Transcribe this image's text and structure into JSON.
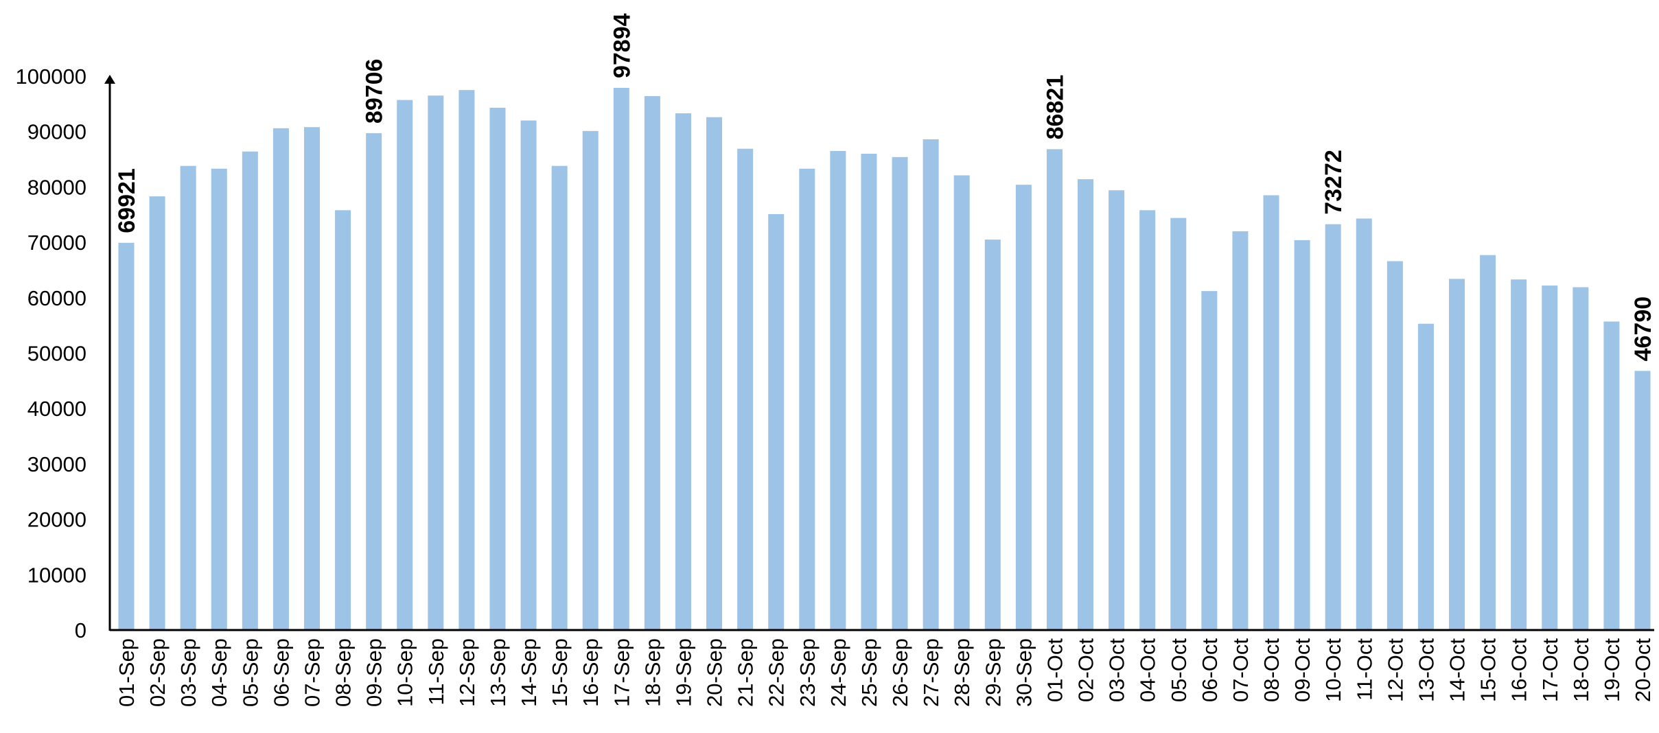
{
  "chart_data": {
    "type": "bar",
    "title": "",
    "xlabel": "",
    "ylabel": "",
    "ylim": [
      0,
      100000
    ],
    "yticks": [
      0,
      10000,
      20000,
      30000,
      40000,
      50000,
      60000,
      70000,
      80000,
      90000,
      100000
    ],
    "ytick_labels": [
      "0",
      "10000",
      "20000",
      "30000",
      "40000",
      "50000",
      "60000",
      "70000",
      "80000",
      "90000",
      "100000"
    ],
    "grid": false,
    "legend": "none",
    "bar_color": "#9dc3e6",
    "axis_color": "#000000",
    "categories": [
      "01-Sep",
      "02-Sep",
      "03-Sep",
      "04-Sep",
      "05-Sep",
      "06-Sep",
      "07-Sep",
      "08-Sep",
      "09-Sep",
      "10-Sep",
      "11-Sep",
      "12-Sep",
      "13-Sep",
      "14-Sep",
      "15-Sep",
      "16-Sep",
      "17-Sep",
      "18-Sep",
      "19-Sep",
      "20-Sep",
      "21-Sep",
      "22-Sep",
      "23-Sep",
      "24-Sep",
      "25-Sep",
      "26-Sep",
      "27-Sep",
      "28-Sep",
      "29-Sep",
      "30-Sep",
      "01-Oct",
      "02-Oct",
      "03-Oct",
      "04-Oct",
      "05-Oct",
      "06-Oct",
      "07-Oct",
      "08-Oct",
      "09-Oct",
      "10-Oct",
      "11-Oct",
      "12-Oct",
      "13-Oct",
      "14-Oct",
      "15-Oct",
      "16-Oct",
      "17-Oct",
      "18-Oct",
      "19-Oct",
      "20-Oct"
    ],
    "values": [
      69921,
      78300,
      83800,
      83300,
      86400,
      90600,
      90800,
      75800,
      89706,
      95700,
      96500,
      97500,
      94300,
      92000,
      83800,
      90100,
      97894,
      96400,
      93300,
      92600,
      86900,
      75100,
      83300,
      86500,
      86000,
      85400,
      88600,
      82100,
      70500,
      80400,
      86821,
      81400,
      79400,
      75800,
      74400,
      61200,
      72000,
      78500,
      70400,
      73272,
      74300,
      66600,
      55300,
      63400,
      67700,
      63300,
      62200,
      61900,
      55700,
      46790
    ],
    "data_labels": [
      {
        "category": "01-Sep",
        "text": "69921"
      },
      {
        "category": "09-Sep",
        "text": "89706"
      },
      {
        "category": "17-Sep",
        "text": "97894"
      },
      {
        "category": "01-Oct",
        "text": "86821"
      },
      {
        "category": "10-Oct",
        "text": "73272"
      },
      {
        "category": "20-Oct",
        "text": "46790"
      }
    ]
  }
}
